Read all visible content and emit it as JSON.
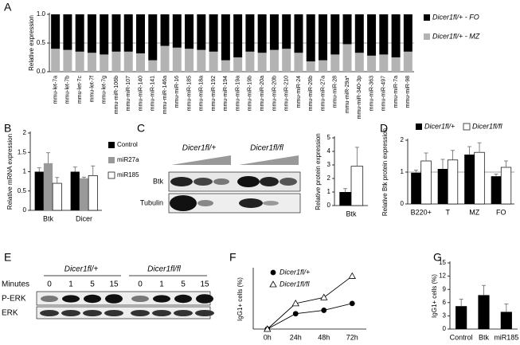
{
  "chart_data": [
    {
      "type": "bar",
      "panel": "A",
      "stacked": true,
      "ylabel": "Relative expression",
      "categories": [
        "mmu-let-7a",
        "mmu-let-7b",
        "mmu-let-7c",
        "mmu-let-7f",
        "mmu-let-7g",
        "mmu-miR-106b",
        "mmu-miR-107",
        "mmu-miR-140",
        "mmu-miR-141",
        "mmu-miR-146a",
        "mmu-miR-16",
        "mmu-miR-185",
        "mmu-miR-18a",
        "mmu-miR-192",
        "mmu-miR-194",
        "mmu-miR-19a",
        "mmu-miR-19b",
        "mmu-miR-20a",
        "mmu-miR-20b",
        "mmu-miR-210",
        "mmu-miR-24",
        "mmu-miR-26b",
        "mmu-miR-27a",
        "mmu-miR-28",
        "mmu-miR-29a*",
        "mmu-miR-340-3p",
        "mmu-miR-363",
        "mmu-miR-497",
        "mmu-miR-7a",
        "mmu-miR-98"
      ],
      "series": [
        {
          "name": "Dicer1fl/+ - MZ",
          "color": "#b3b3b3",
          "values": [
            0.4,
            0.38,
            0.35,
            0.33,
            0.3,
            0.35,
            0.35,
            0.32,
            0.2,
            0.45,
            0.42,
            0.4,
            0.38,
            0.35,
            0.2,
            0.25,
            0.35,
            0.33,
            0.38,
            0.4,
            0.33,
            0.18,
            0.2,
            0.3,
            0.48,
            0.33,
            0.28,
            0.3,
            0.25,
            0.35
          ]
        },
        {
          "name": "Dicer1fl/+ - FO",
          "color": "#000000",
          "values": [
            0.6,
            0.62,
            0.65,
            0.67,
            0.7,
            0.65,
            0.65,
            0.68,
            0.8,
            0.55,
            0.58,
            0.6,
            0.62,
            0.65,
            0.8,
            0.75,
            0.65,
            0.67,
            0.62,
            0.6,
            0.67,
            0.82,
            0.8,
            0.7,
            0.52,
            0.67,
            0.72,
            0.7,
            0.75,
            0.65
          ]
        }
      ],
      "ylim": [
        0,
        1
      ],
      "yticks": [
        {
          "value": 0,
          "label": "0.0"
        },
        {
          "value": 0.5,
          "label": "0.5"
        },
        {
          "value": 1,
          "label": "1.0"
        }
      ],
      "hline": 0.5
    },
    {
      "type": "bar",
      "panel": "B",
      "ylabel": "Relative mRNA expression",
      "categories": [
        "Btk",
        "Dicer"
      ],
      "series": [
        {
          "name": "Control",
          "color": "#000000",
          "values": [
            1.0,
            1.0
          ],
          "errors": [
            0.1,
            0.12
          ]
        },
        {
          "name": "miR27a",
          "color": "#999999",
          "values": [
            1.22,
            0.83
          ],
          "errors": [
            0.27,
            0.03
          ]
        },
        {
          "name": "miR185",
          "color": "#ffffff",
          "values": [
            0.7,
            0.9
          ],
          "errors": [
            0.15,
            0.25
          ]
        }
      ],
      "ylim": [
        0,
        2
      ],
      "yticks": [
        0,
        0.5,
        1,
        1.5,
        2
      ]
    },
    {
      "type": "bar",
      "panel": "C",
      "ylabel": "Relative protein expression",
      "categories": [
        "Btk"
      ],
      "series": [
        {
          "color": "#000000",
          "values": [
            1.0
          ],
          "errors": [
            0.25
          ]
        },
        {
          "color": "#ffffff",
          "values": [
            2.9
          ],
          "errors": [
            1.4
          ]
        }
      ],
      "ylim": [
        0,
        5
      ],
      "yticks": [
        0,
        1,
        2,
        3,
        4,
        5
      ]
    },
    {
      "type": "bar",
      "panel": "D",
      "ylabel": "Relative Btk protein expression",
      "categories": [
        "B220+",
        "T",
        "MZ",
        "FO"
      ],
      "series": [
        {
          "name": "Dicer1fl/+",
          "color": "#000000",
          "values": [
            0.98,
            1.1,
            1.55,
            0.87
          ],
          "errors": [
            0.08,
            0.3,
            0.25,
            0.07
          ]
        },
        {
          "name": "Dicer1fl/fl",
          "color": "#ffffff",
          "values": [
            1.35,
            1.38,
            1.62,
            1.15
          ],
          "errors": [
            0.25,
            0.3,
            0.3,
            0.2
          ]
        }
      ],
      "ylim": [
        0,
        2
      ],
      "yticks": [
        0,
        1,
        2
      ],
      "hline": 1
    },
    {
      "type": "line",
      "panel": "F",
      "ylabel": "IgG1+ cells (%)",
      "categories": [
        "0h",
        "24h",
        "48h",
        "72h"
      ],
      "series": [
        {
          "name": "Dicer1fl/+",
          "color": "#000000",
          "marker": "circle",
          "values": [
            0,
            0.9,
            1.1,
            1.5
          ]
        },
        {
          "name": "Dicer1fl/fl",
          "color": "#ffffff",
          "marker": "triangle",
          "values": [
            0,
            1.5,
            1.85,
            3.1
          ]
        }
      ],
      "ylim": [
        0,
        3.5
      ]
    },
    {
      "type": "bar",
      "panel": "G",
      "ylabel": "IgG1+ cells (%)",
      "categories": [
        "Control",
        "Btk",
        "miR185"
      ],
      "series": [
        {
          "color": "#000000",
          "values": [
            5.2,
            7.7,
            3.9
          ],
          "errors": [
            1.6,
            2.2,
            1.8
          ]
        }
      ],
      "ylim": [
        0,
        15
      ],
      "yticks": [
        0,
        3,
        6,
        9,
        12,
        15
      ]
    }
  ],
  "blots": [
    {
      "panel": "C",
      "genotypes": [
        "Dicer1fl/+",
        "Dicer1fl/fl"
      ],
      "rows": [
        "Btk",
        "Tubulin"
      ]
    },
    {
      "panel": "E",
      "genotypes": [
        "Dicer1fl/+",
        "Dicer1fl/fl"
      ],
      "time_label": "Minutes",
      "lanes": [
        0,
        1,
        5,
        15,
        0,
        1,
        5,
        15
      ],
      "rows": [
        "P-ERK",
        "ERK"
      ]
    }
  ]
}
